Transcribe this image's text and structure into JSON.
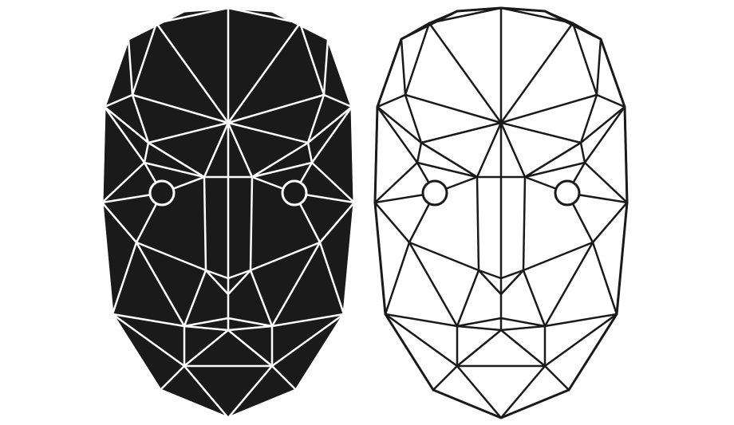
{
  "figure": {
    "background": "#ffffff",
    "mesh_points": 38,
    "panels": [
      {
        "name": "filled-face-mesh",
        "style": "white-lines-on-black",
        "fill": "#1a1a1a",
        "stroke": "#ffffff"
      },
      {
        "name": "outline-face-mesh",
        "style": "black-lines-on-white",
        "fill": "#ffffff",
        "stroke": "#1a1a1a"
      }
    ]
  }
}
